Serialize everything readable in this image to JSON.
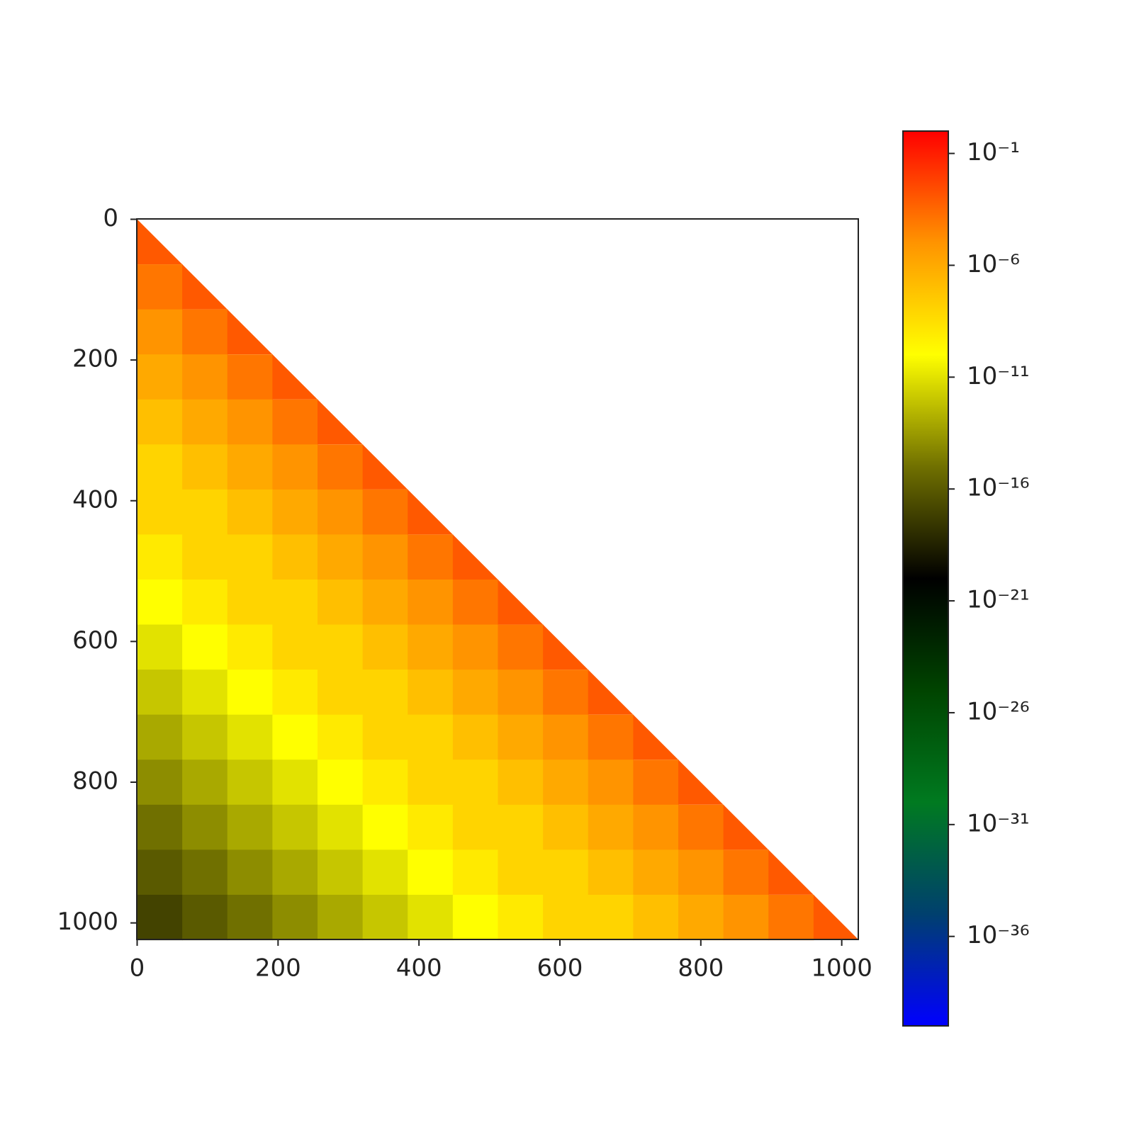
{
  "chart_data": {
    "type": "heatmap",
    "x": [
      32,
      96,
      160,
      224,
      288,
      352,
      416,
      480,
      544,
      608,
      672,
      736,
      800,
      864,
      928,
      992
    ],
    "y": [
      32,
      96,
      160,
      224,
      288,
      352,
      416,
      480,
      544,
      608,
      672,
      736,
      800,
      864,
      928,
      992
    ],
    "z": [
      [
        0.001,
        null,
        null,
        null,
        null,
        null,
        null,
        null,
        null,
        null,
        null,
        null,
        null,
        null,
        null,
        null
      ],
      [
        0.0001,
        0.001,
        null,
        null,
        null,
        null,
        null,
        null,
        null,
        null,
        null,
        null,
        null,
        null,
        null,
        null
      ],
      [
        1e-05,
        0.0001,
        0.001,
        null,
        null,
        null,
        null,
        null,
        null,
        null,
        null,
        null,
        null,
        null,
        null,
        null
      ],
      [
        1e-06,
        1e-05,
        0.0001,
        0.001,
        null,
        null,
        null,
        null,
        null,
        null,
        null,
        null,
        null,
        null,
        null,
        null
      ],
      [
        1e-07,
        1e-06,
        1e-05,
        0.0001,
        0.001,
        null,
        null,
        null,
        null,
        null,
        null,
        null,
        null,
        null,
        null,
        null
      ],
      [
        1e-08,
        1e-07,
        1e-06,
        1e-05,
        0.0001,
        0.001,
        null,
        null,
        null,
        null,
        null,
        null,
        null,
        null,
        null,
        null
      ],
      [
        1e-08,
        1e-08,
        1e-07,
        1e-06,
        1e-05,
        0.0001,
        0.001,
        null,
        null,
        null,
        null,
        null,
        null,
        null,
        null,
        null
      ],
      [
        1e-09,
        1e-08,
        1e-08,
        1e-07,
        1e-06,
        1e-05,
        0.0001,
        0.001,
        null,
        null,
        null,
        null,
        null,
        null,
        null,
        null
      ],
      [
        1e-10,
        1e-09,
        1e-08,
        1e-08,
        1e-07,
        1e-06,
        1e-05,
        0.0001,
        0.001,
        null,
        null,
        null,
        null,
        null,
        null,
        null
      ],
      [
        1e-11,
        1e-10,
        1e-09,
        1e-08,
        1e-08,
        1e-07,
        1e-06,
        1e-05,
        0.0001,
        0.001,
        null,
        null,
        null,
        null,
        null,
        null
      ],
      [
        1e-12,
        1e-11,
        1e-10,
        1e-09,
        1e-08,
        1e-08,
        1e-07,
        1e-06,
        1e-05,
        0.0001,
        0.001,
        null,
        null,
        null,
        null,
        null
      ],
      [
        1e-13,
        1e-12,
        1e-11,
        1e-10,
        1e-09,
        1e-08,
        1e-08,
        1e-07,
        1e-06,
        1e-05,
        0.0001,
        0.001,
        null,
        null,
        null,
        null
      ],
      [
        1e-14,
        1e-13,
        1e-12,
        1e-11,
        1e-10,
        1e-09,
        1e-08,
        1e-08,
        1e-07,
        1e-06,
        1e-05,
        0.0001,
        0.001,
        null,
        null,
        null
      ],
      [
        1e-15,
        1e-14,
        1e-13,
        1e-12,
        1e-11,
        1e-10,
        1e-09,
        1e-08,
        1e-08,
        1e-07,
        1e-06,
        1e-05,
        0.0001,
        0.001,
        null,
        null
      ],
      [
        1e-16,
        1e-15,
        1e-14,
        1e-13,
        1e-12,
        1e-11,
        1e-10,
        1e-09,
        1e-08,
        1e-08,
        1e-07,
        1e-06,
        1e-05,
        0.0001,
        0.001,
        null
      ],
      [
        1e-17,
        1e-16,
        1e-15,
        1e-14,
        1e-13,
        1e-12,
        1e-11,
        1e-10,
        1e-09,
        1e-08,
        1e-08,
        1e-07,
        1e-06,
        1e-05,
        0.0001,
        0.001
      ]
    ],
    "xlim": [
      -0.5,
      1023.5
    ],
    "ylim": [
      1023.5,
      -0.5
    ],
    "xticks": [
      0,
      200,
      400,
      600,
      800,
      1000
    ],
    "yticks": [
      0,
      200,
      400,
      600,
      800,
      1000
    ],
    "colorbar": {
      "log": true,
      "lim": [
        1e-40,
        1
      ],
      "colormap": [
        "#0000ff",
        "#00406e",
        "#007a20",
        "#004400",
        "#000000",
        "#707000",
        "#ffff00",
        "#ff9400",
        "#ff0000"
      ],
      "ticks": [
        {
          "value": 0.1,
          "label": "10⁻¹"
        },
        {
          "value": 1e-06,
          "label": "10⁻⁶"
        },
        {
          "value": 1e-11,
          "label": "10⁻¹¹"
        },
        {
          "value": 1e-16,
          "label": "10⁻¹⁶"
        },
        {
          "value": 1e-21,
          "label": "10⁻²¹"
        },
        {
          "value": 1e-26,
          "label": "10⁻²⁶"
        },
        {
          "value": 1e-31,
          "label": "10⁻³¹"
        },
        {
          "value": 1e-36,
          "label": "10⁻³⁶"
        }
      ]
    }
  }
}
